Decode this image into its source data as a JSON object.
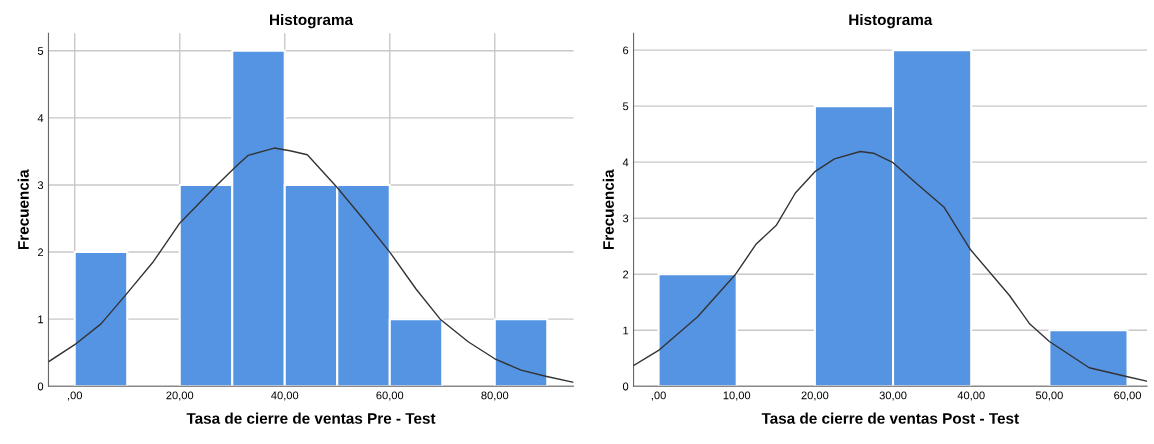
{
  "chart_data": [
    {
      "type": "histogram",
      "title": "Histograma",
      "xlabel": "Tasa de cierre de ventas Pre - Test",
      "ylabel": "Frecuencia",
      "color": "#5594e3",
      "bins": [
        0,
        10,
        20,
        30,
        40,
        50,
        60,
        70,
        80,
        90
      ],
      "values": [
        2,
        0,
        3,
        5,
        3,
        3,
        1,
        0,
        1
      ],
      "xlim": [
        -5,
        95
      ],
      "ylim": [
        0,
        5.26
      ],
      "xticks": [
        {
          "value": 0,
          "label": ",00"
        },
        {
          "value": 20,
          "label": "20,00"
        },
        {
          "value": 40,
          "label": "40,00"
        },
        {
          "value": 60,
          "label": "60,00"
        },
        {
          "value": 80,
          "label": "80,00"
        }
      ],
      "yticks": [
        0,
        1,
        2,
        3,
        4,
        5
      ],
      "grid": true,
      "series": [
        {
          "type": "line",
          "color": "#333333",
          "x": [
            -4.9,
            0,
            5,
            9.8,
            15,
            20,
            26.7,
            30.9,
            33,
            38,
            41,
            44.3,
            49.9,
            55,
            60,
            65,
            69.6,
            75,
            80,
            85,
            89.7,
            94.9
          ],
          "values": [
            0.37,
            0.62,
            0.93,
            1.37,
            1.86,
            2.43,
            2.97,
            3.29,
            3.44,
            3.55,
            3.51,
            3.45,
            2.97,
            2.49,
            2.0,
            1.45,
            1.0,
            0.66,
            0.41,
            0.24,
            0.15,
            0.06
          ]
        }
      ]
    },
    {
      "type": "histogram",
      "title": "Histograma",
      "xlabel": "Tasa de cierre de ventas Post - Test",
      "ylabel": "Frecuencia",
      "color": "#5594e3",
      "bins": [
        0,
        10,
        20,
        30,
        40,
        50,
        60
      ],
      "values": [
        2,
        0,
        5,
        6,
        0,
        1
      ],
      "xlim": [
        -3.2,
        62.5
      ],
      "ylim": [
        0,
        6.3
      ],
      "xticks": [
        {
          "value": 0,
          "label": ",00"
        },
        {
          "value": 10,
          "label": "10,00"
        },
        {
          "value": 20,
          "label": "20,00"
        },
        {
          "value": 30,
          "label": "30,00"
        },
        {
          "value": 40,
          "label": "40,00"
        },
        {
          "value": 50,
          "label": "50,00"
        },
        {
          "value": 60,
          "label": "60,00"
        }
      ],
      "yticks": [
        0,
        1,
        2,
        3,
        4,
        5,
        6
      ],
      "grid": "y",
      "series": [
        {
          "type": "line",
          "color": "#333333",
          "x": [
            -3.2,
            0,
            5,
            9.8,
            12.5,
            15.1,
            17.5,
            20,
            22.5,
            25.8,
            27.5,
            30,
            33,
            36.5,
            39.9,
            44.9,
            47.5,
            50,
            55.1,
            60,
            62.5
          ],
          "values": [
            0.37,
            0.64,
            1.24,
            1.99,
            2.54,
            2.88,
            3.45,
            3.83,
            4.06,
            4.19,
            4.16,
            3.99,
            3.62,
            3.2,
            2.44,
            1.62,
            1.11,
            0.8,
            0.33,
            0.17,
            0.09
          ]
        }
      ]
    }
  ]
}
